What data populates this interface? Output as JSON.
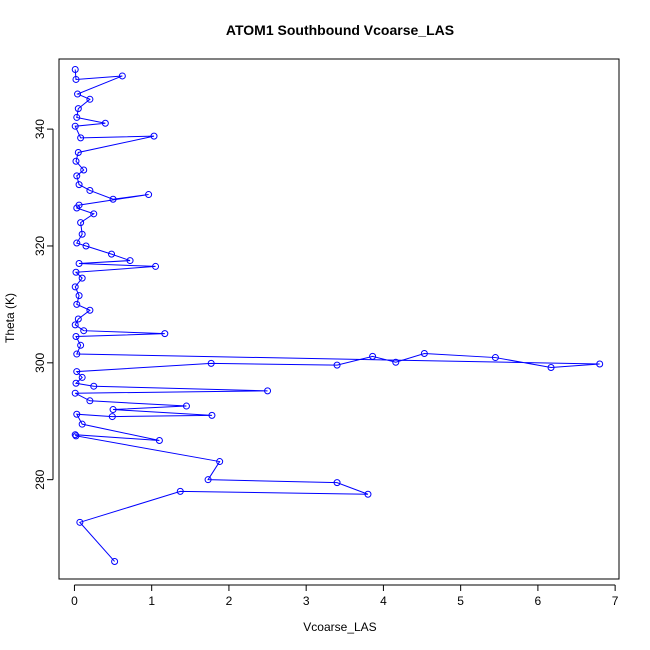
{
  "chart_data": {
    "type": "line",
    "title": "ATOM1 Southbound Vcoarse_LAS",
    "xlabel": "Vcoarse_LAS",
    "ylabel": "Theta (K)",
    "xlim": [
      -0.2,
      7.05
    ],
    "ylim": [
      263,
      352
    ],
    "x_ticks": [
      0,
      1,
      2,
      3,
      4,
      5,
      6,
      7
    ],
    "y_ticks": [
      280,
      300,
      320,
      340
    ],
    "grid": false,
    "legend": "none",
    "markers": "open-circle",
    "series": [
      {
        "color": "#0000ff",
        "points": [
          [
            0.01,
            350.2
          ],
          [
            0.02,
            348.5
          ],
          [
            0.62,
            349.1
          ],
          [
            0.04,
            346.0
          ],
          [
            0.2,
            345.1
          ],
          [
            0.05,
            343.5
          ],
          [
            0.03,
            342.0
          ],
          [
            0.4,
            341.0
          ],
          [
            0.01,
            340.5
          ],
          [
            0.08,
            338.5
          ],
          [
            1.03,
            338.8
          ],
          [
            0.05,
            336.0
          ],
          [
            0.02,
            334.5
          ],
          [
            0.12,
            333.0
          ],
          [
            0.03,
            332.0
          ],
          [
            0.06,
            330.5
          ],
          [
            0.2,
            329.5
          ],
          [
            0.5,
            328.0
          ],
          [
            0.96,
            328.8
          ],
          [
            0.06,
            327.0
          ],
          [
            0.03,
            326.5
          ],
          [
            0.25,
            325.5
          ],
          [
            0.08,
            324.0
          ],
          [
            0.1,
            322.0
          ],
          [
            0.03,
            320.5
          ],
          [
            0.15,
            320.0
          ],
          [
            0.48,
            318.6
          ],
          [
            0.72,
            317.5
          ],
          [
            0.06,
            317.0
          ],
          [
            1.05,
            316.5
          ],
          [
            0.02,
            315.5
          ],
          [
            0.1,
            314.5
          ],
          [
            0.01,
            313.0
          ],
          [
            0.06,
            311.5
          ],
          [
            0.03,
            310.0
          ],
          [
            0.2,
            309.0
          ],
          [
            0.05,
            307.5
          ],
          [
            0.01,
            306.5
          ],
          [
            0.12,
            305.5
          ],
          [
            1.17,
            305.0
          ],
          [
            0.02,
            304.5
          ],
          [
            0.08,
            303.0
          ],
          [
            0.03,
            301.5
          ],
          [
            6.8,
            299.8
          ],
          [
            6.17,
            299.2
          ],
          [
            5.45,
            300.9
          ],
          [
            4.53,
            301.6
          ],
          [
            4.16,
            300.1
          ],
          [
            3.86,
            301.1
          ],
          [
            3.4,
            299.6
          ],
          [
            1.77,
            299.9
          ],
          [
            0.03,
            298.5
          ],
          [
            0.1,
            297.5
          ],
          [
            0.02,
            296.5
          ],
          [
            0.25,
            296.0
          ],
          [
            2.5,
            295.2
          ],
          [
            0.01,
            294.8
          ],
          [
            0.2,
            293.5
          ],
          [
            1.45,
            292.6
          ],
          [
            0.5,
            292.0
          ],
          [
            1.78,
            291.0
          ],
          [
            0.49,
            290.8
          ],
          [
            0.03,
            291.2
          ],
          [
            0.1,
            289.5
          ],
          [
            1.1,
            286.7
          ],
          [
            0.01,
            287.7
          ],
          [
            0.02,
            287.5
          ],
          [
            1.88,
            283.1
          ],
          [
            1.73,
            280.0
          ],
          [
            3.4,
            279.5
          ],
          [
            3.8,
            277.5
          ],
          [
            1.37,
            278.0
          ],
          [
            0.07,
            272.7
          ],
          [
            0.52,
            266.0
          ]
        ]
      }
    ]
  }
}
